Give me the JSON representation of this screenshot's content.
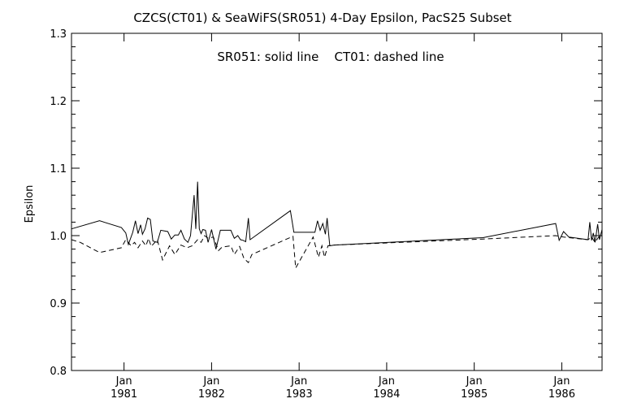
{
  "chart_data": {
    "type": "line",
    "title": "CZCS(CT01) & SeaWiFS(SR051) 4-Day Epsilon, PacS25 Subset",
    "annotation": "SR051: solid line    CT01: dashed line",
    "ylabel": "Epsilon",
    "xlabel": "",
    "xlim": [
      1980.4,
      1986.46
    ],
    "ylim": [
      0.8,
      1.3
    ],
    "grid": false,
    "y_ticks": [
      "0.8",
      "0.9",
      "1.0",
      "1.1",
      "1.2",
      "1.3"
    ],
    "x_ticks": [
      {
        "month": "Jan",
        "year": "1981"
      },
      {
        "month": "Jan",
        "year": "1982"
      },
      {
        "month": "Jan",
        "year": "1983"
      },
      {
        "month": "Jan",
        "year": "1984"
      },
      {
        "month": "Jan",
        "year": "1985"
      },
      {
        "month": "Jan",
        "year": "1986"
      }
    ],
    "series": [
      {
        "name": "SR051",
        "style": "solid",
        "color": "#000000",
        "x": [
          1980.4,
          1980.72,
          1980.97,
          1981.02,
          1981.05,
          1981.1,
          1981.13,
          1981.16,
          1981.19,
          1981.21,
          1981.24,
          1981.27,
          1981.3,
          1981.33,
          1981.38,
          1981.42,
          1981.5,
          1981.54,
          1981.58,
          1981.62,
          1981.65,
          1981.69,
          1981.73,
          1981.76,
          1981.78,
          1981.8,
          1981.82,
          1981.84,
          1981.86,
          1981.88,
          1981.9,
          1981.93,
          1981.96,
          1982.0,
          1982.05,
          1982.1,
          1982.22,
          1982.26,
          1982.3,
          1982.33,
          1982.36,
          1982.39,
          1982.42,
          1982.44,
          1982.9,
          1982.94,
          1983.18,
          1983.21,
          1983.24,
          1983.27,
          1983.3,
          1983.32,
          1983.35,
          1983.4,
          1985.1,
          1985.93,
          1985.97,
          1986.02,
          1986.08,
          1986.3,
          1986.32,
          1986.34,
          1986.36,
          1986.38,
          1986.41,
          1986.43,
          1986.46
        ],
        "y": [
          1.01,
          1.022,
          1.012,
          1.004,
          0.987,
          1.005,
          1.022,
          1.003,
          1.016,
          1.002,
          1.01,
          1.026,
          1.024,
          0.992,
          0.99,
          1.008,
          1.006,
          0.995,
          1.001,
          1.001,
          1.008,
          0.995,
          0.99,
          1.0,
          1.03,
          1.06,
          1.01,
          1.08,
          1.01,
          1.003,
          1.009,
          1.008,
          0.99,
          1.009,
          0.98,
          1.008,
          1.008,
          0.996,
          1.0,
          0.994,
          0.993,
          0.991,
          1.026,
          0.994,
          1.037,
          1.005,
          1.005,
          1.022,
          1.008,
          1.018,
          1.002,
          1.026,
          0.985,
          0.986,
          0.997,
          1.018,
          0.993,
          1.006,
          0.998,
          0.994,
          1.02,
          0.993,
          1.004,
          0.99,
          1.017,
          0.994,
          1.009
        ]
      },
      {
        "name": "CT01",
        "style": "dashed",
        "color": "#000000",
        "x": [
          1980.4,
          1980.5,
          1980.72,
          1980.97,
          1981.02,
          1981.08,
          1981.12,
          1981.16,
          1981.21,
          1981.25,
          1981.28,
          1981.31,
          1981.38,
          1981.44,
          1981.52,
          1981.58,
          1981.65,
          1981.72,
          1981.78,
          1981.84,
          1981.88,
          1981.92,
          1981.96,
          1982.02,
          1982.08,
          1982.12,
          1982.22,
          1982.26,
          1982.32,
          1982.37,
          1982.42,
          1982.46,
          1982.93,
          1982.96,
          1983.16,
          1983.22,
          1983.26,
          1983.29,
          1983.33,
          1983.4,
          1985.1,
          1985.93,
          1985.97,
          1986.02,
          1986.08,
          1986.3,
          1986.34,
          1986.38,
          1986.42,
          1986.46
        ],
        "y": [
          0.994,
          0.99,
          0.975,
          0.982,
          0.994,
          0.985,
          0.99,
          0.982,
          0.992,
          0.985,
          0.996,
          0.984,
          0.994,
          0.964,
          0.985,
          0.972,
          0.986,
          0.982,
          0.985,
          0.994,
          0.99,
          1.0,
          0.996,
          0.998,
          0.978,
          0.983,
          0.985,
          0.972,
          0.984,
          0.966,
          0.96,
          0.972,
          0.999,
          0.952,
          0.998,
          0.968,
          0.985,
          0.968,
          0.985,
          0.986,
          0.995,
          1.0,
          0.999,
          0.998,
          0.997,
          0.994,
          0.998,
          0.99,
          0.998,
          0.996
        ]
      }
    ]
  }
}
